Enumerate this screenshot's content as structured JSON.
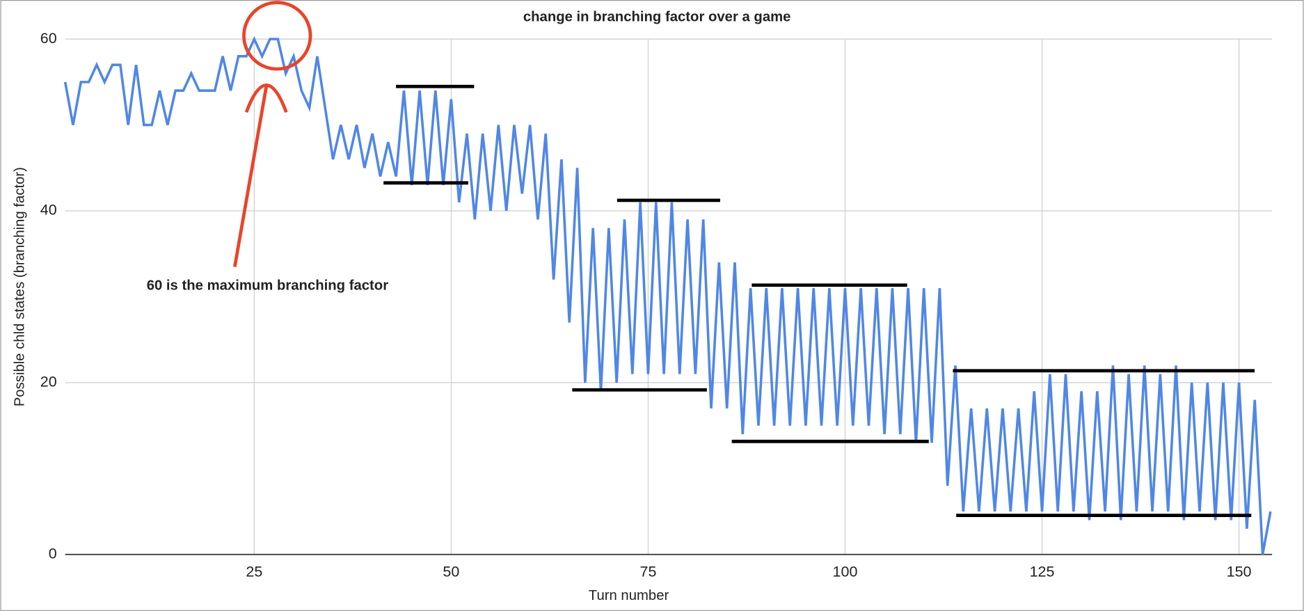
{
  "chart_data": {
    "type": "line",
    "title": "change in branching factor over a game",
    "x_label": "Turn number",
    "y_label": "Possible chld states (branching factor)",
    "annotation": "60 is the maximum branching factor",
    "x": [
      1,
      2,
      3,
      4,
      5,
      6,
      7,
      8,
      9,
      10,
      11,
      12,
      13,
      14,
      15,
      16,
      17,
      18,
      19,
      20,
      21,
      22,
      23,
      24,
      25,
      26,
      27,
      28,
      29,
      30,
      31,
      32,
      33,
      34,
      35,
      36,
      37,
      38,
      39,
      40,
      41,
      42,
      43,
      44,
      45,
      46,
      47,
      48,
      49,
      50,
      51,
      52,
      53,
      54,
      55,
      56,
      57,
      58,
      59,
      60,
      61,
      62,
      63,
      64,
      65,
      66,
      67,
      68,
      69,
      70,
      71,
      72,
      73,
      74,
      75,
      76,
      77,
      78,
      79,
      80,
      81,
      82,
      83,
      84,
      85,
      86,
      87,
      88,
      89,
      90,
      91,
      92,
      93,
      94,
      95,
      96,
      97,
      98,
      99,
      100,
      101,
      102,
      103,
      104,
      105,
      106,
      107,
      108,
      109,
      110,
      111,
      112,
      113,
      114,
      115,
      116,
      117,
      118,
      119,
      120,
      121,
      122,
      123,
      124,
      125,
      126,
      127,
      128,
      129,
      130,
      131,
      132,
      133,
      134,
      135,
      136,
      137,
      138,
      139,
      140,
      141,
      142,
      143,
      144,
      145,
      146,
      147,
      148,
      149,
      150,
      151,
      152,
      153,
      154
    ],
    "series": [
      {
        "name": "Possible chld states",
        "color": "#5087e6",
        "values": [
          55,
          50,
          55,
          55,
          57,
          55,
          57,
          57,
          50,
          57,
          50,
          50,
          54,
          50,
          54,
          54,
          56,
          54,
          54,
          54,
          58,
          54,
          58,
          58,
          60,
          58,
          60,
          60,
          56,
          58,
          54,
          52,
          58,
          52,
          46,
          50,
          46,
          50,
          45,
          49,
          44,
          48,
          44,
          54,
          43,
          54,
          43,
          54,
          43,
          53,
          41,
          49,
          39,
          49,
          40,
          50,
          40,
          50,
          42,
          50,
          39,
          49,
          32,
          46,
          27,
          45,
          20,
          38,
          19,
          38,
          20,
          39,
          21,
          41,
          21,
          41,
          21,
          41,
          21,
          39,
          21,
          39,
          17,
          34,
          17,
          34,
          14,
          31,
          15,
          31,
          15,
          31,
          15,
          31,
          15,
          31,
          15,
          31,
          15,
          31,
          15,
          31,
          15,
          31,
          14,
          31,
          14,
          31,
          13,
          31,
          13,
          31,
          8,
          22,
          5,
          17,
          5,
          17,
          5,
          17,
          5,
          17,
          5,
          19,
          5,
          21,
          5,
          21,
          5,
          19,
          4,
          19,
          5,
          22,
          4,
          21,
          5,
          22,
          5,
          21,
          5,
          22,
          4,
          20,
          5,
          20,
          4,
          20,
          4,
          20,
          3,
          18,
          0,
          5
        ]
      }
    ],
    "xlim": [
      1,
      154.2
    ],
    "ylim": [
      0,
      60
    ],
    "xticks": [
      25,
      50,
      75,
      100,
      125,
      150
    ],
    "yticks": [
      0,
      20,
      40,
      60
    ],
    "grid": true
  }
}
